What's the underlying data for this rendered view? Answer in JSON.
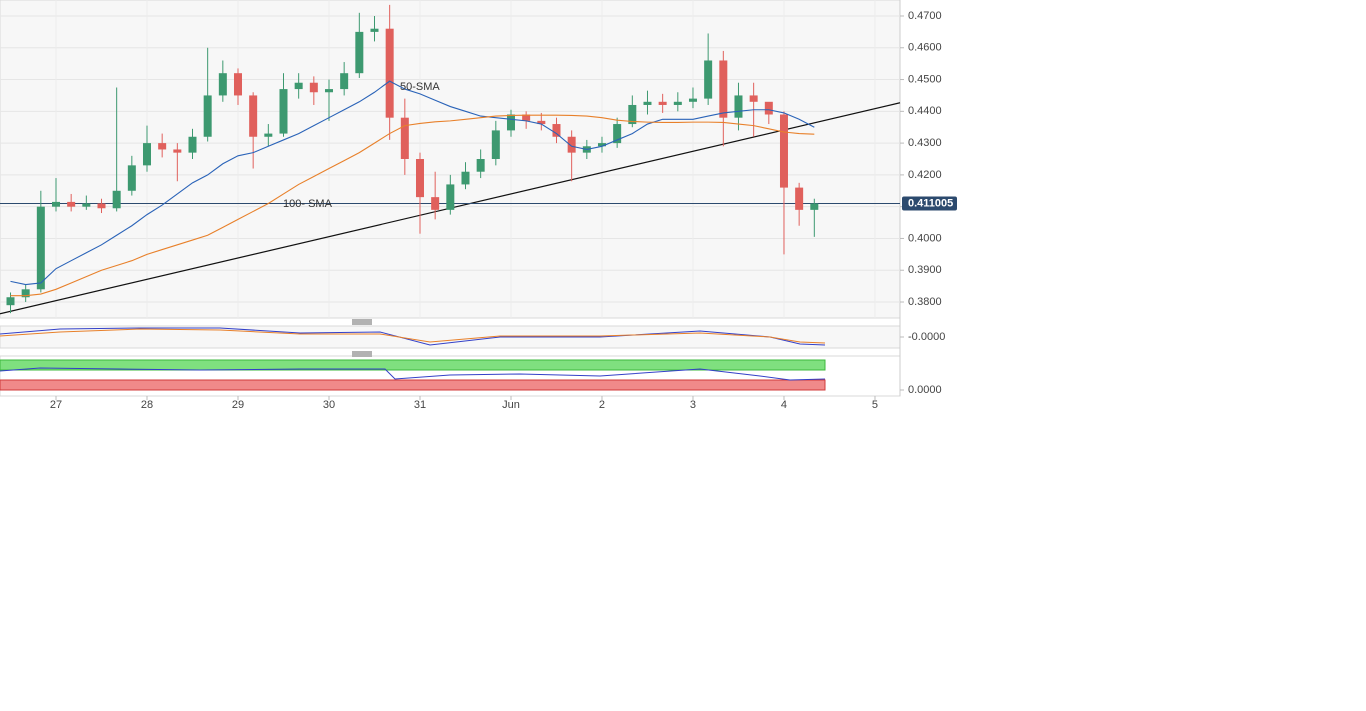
{
  "chart_data": {
    "type": "candlestick",
    "x": [
      12,
      16,
      20,
      24,
      28,
      32,
      36,
      40,
      44,
      48,
      52,
      56,
      60,
      64,
      68,
      72,
      76,
      80,
      84,
      88,
      92,
      96,
      100,
      104,
      108,
      112,
      116,
      120,
      124,
      128,
      132,
      136,
      140,
      144,
      148,
      152,
      156,
      160,
      164,
      168,
      172,
      176,
      180,
      184,
      188,
      192,
      196,
      200,
      204,
      208,
      212,
      216,
      220,
      224
    ],
    "open": [
      0.379,
      0.3815,
      0.384,
      0.41,
      0.4115,
      0.41,
      0.411,
      0.4095,
      0.415,
      0.423,
      0.43,
      0.428,
      0.427,
      0.432,
      0.445,
      0.452,
      0.445,
      0.432,
      0.433,
      0.447,
      0.449,
      0.446,
      0.447,
      0.452,
      0.465,
      0.466,
      0.438,
      0.425,
      0.413,
      0.409,
      0.417,
      0.421,
      0.425,
      0.434,
      0.439,
      0.437,
      0.436,
      0.432,
      0.427,
      0.429,
      0.43,
      0.436,
      0.442,
      0.443,
      0.442,
      0.443,
      0.444,
      0.456,
      0.438,
      0.445,
      0.443,
      0.439,
      0.416,
      0.409
    ],
    "high": [
      0.383,
      0.3855,
      0.415,
      0.419,
      0.414,
      0.4135,
      0.4125,
      0.4475,
      0.426,
      0.4355,
      0.433,
      0.43,
      0.4345,
      0.46,
      0.456,
      0.4535,
      0.446,
      0.436,
      0.452,
      0.452,
      0.451,
      0.45,
      0.4555,
      0.471,
      0.47,
      0.4735,
      0.444,
      0.427,
      0.421,
      0.42,
      0.424,
      0.428,
      0.437,
      0.4405,
      0.44,
      0.4395,
      0.438,
      0.434,
      0.431,
      0.432,
      0.438,
      0.445,
      0.4465,
      0.4455,
      0.446,
      0.4475,
      0.4645,
      0.459,
      0.449,
      0.449,
      0.442,
      0.44,
      0.4175,
      0.4125
    ],
    "low": [
      0.3765,
      0.38,
      0.383,
      0.4085,
      0.4085,
      0.409,
      0.408,
      0.4085,
      0.4135,
      0.421,
      0.4255,
      0.418,
      0.425,
      0.4305,
      0.443,
      0.442,
      0.422,
      0.429,
      0.432,
      0.444,
      0.442,
      0.437,
      0.445,
      0.4505,
      0.462,
      0.431,
      0.42,
      0.4015,
      0.406,
      0.4075,
      0.4155,
      0.419,
      0.423,
      0.432,
      0.4345,
      0.434,
      0.43,
      0.418,
      0.425,
      0.427,
      0.4285,
      0.435,
      0.439,
      0.4395,
      0.44,
      0.441,
      0.442,
      0.429,
      0.434,
      0.432,
      0.436,
      0.395,
      0.404,
      0.4005
    ],
    "close": [
      0.3815,
      0.384,
      0.41,
      0.4115,
      0.41,
      0.411,
      0.4095,
      0.415,
      0.423,
      0.43,
      0.428,
      0.427,
      0.432,
      0.445,
      0.452,
      0.445,
      0.432,
      0.433,
      0.447,
      0.449,
      0.446,
      0.447,
      0.452,
      0.465,
      0.466,
      0.438,
      0.425,
      0.413,
      0.409,
      0.417,
      0.421,
      0.425,
      0.434,
      0.439,
      0.437,
      0.436,
      0.432,
      0.427,
      0.429,
      0.43,
      0.436,
      0.442,
      0.443,
      0.442,
      0.443,
      0.444,
      0.456,
      0.438,
      0.445,
      0.443,
      0.439,
      0.416,
      0.409,
      0.411
    ],
    "up_color": "#3d9970",
    "down_color": "#e0605c",
    "series": [
      {
        "name": "50-SMA",
        "color": "#2a63b8",
        "values": [
          0.3865,
          0.3855,
          0.386,
          0.3905,
          0.393,
          0.3955,
          0.398,
          0.401,
          0.404,
          0.4075,
          0.4105,
          0.414,
          0.4175,
          0.42,
          0.4235,
          0.426,
          0.427,
          0.429,
          0.431,
          0.433,
          0.4355,
          0.438,
          0.4405,
          0.443,
          0.446,
          0.4495,
          0.447,
          0.4455,
          0.4435,
          0.4415,
          0.44,
          0.4385,
          0.438,
          0.4375,
          0.437,
          0.436,
          0.433,
          0.429,
          0.428,
          0.429,
          0.431,
          0.433,
          0.436,
          0.4375,
          0.4375,
          0.4375,
          0.4385,
          0.4395,
          0.44,
          0.4405,
          0.4405,
          0.4395,
          0.4375,
          0.435
        ]
      },
      {
        "name": "100- SMA",
        "color": "#e8802a",
        "values": [
          0.382,
          0.382,
          0.3825,
          0.384,
          0.386,
          0.388,
          0.39,
          0.3915,
          0.393,
          0.395,
          0.3965,
          0.398,
          0.3995,
          0.401,
          0.4035,
          0.406,
          0.4085,
          0.411,
          0.414,
          0.417,
          0.4195,
          0.422,
          0.4245,
          0.427,
          0.43,
          0.433,
          0.4355,
          0.4362,
          0.4367,
          0.437,
          0.4375,
          0.438,
          0.4385,
          0.4387,
          0.4388,
          0.4388,
          0.4388,
          0.4387,
          0.4385,
          0.438,
          0.4372,
          0.4368,
          0.4366,
          0.4365,
          0.4365,
          0.4366,
          0.4366,
          0.4365,
          0.436,
          0.4355,
          0.4345,
          0.4335,
          0.433,
          0.4328
        ]
      }
    ],
    "trendline": {
      "x": [
        9.23,
        246.6
      ],
      "values": [
        0.3763,
        0.4427
      ],
      "color": "#111111"
    },
    "current_price": 0.411005,
    "xlim": [
      9.23,
      246.6
    ],
    "xticks": [
      {
        "value": 24,
        "label": "27"
      },
      {
        "value": 48,
        "label": "28"
      },
      {
        "value": 72,
        "label": "29"
      },
      {
        "value": 96,
        "label": "30"
      },
      {
        "value": 120,
        "label": "31"
      },
      {
        "value": 144,
        "label": "Jun"
      },
      {
        "value": 168,
        "label": "2"
      },
      {
        "value": 192,
        "label": "3"
      },
      {
        "value": 216,
        "label": "4"
      },
      {
        "value": 240,
        "label": "5"
      }
    ],
    "ylim": [
      0.37497,
      0.47503
    ],
    "yticks": [
      {
        "value": 0.38,
        "label": "0.3800"
      },
      {
        "value": 0.39,
        "label": "0.3900"
      },
      {
        "value": 0.4,
        "label": "0.4000"
      },
      {
        "value": 0.41,
        "label": "0.4100"
      },
      {
        "value": 0.42,
        "label": "0.4200"
      },
      {
        "value": 0.43,
        "label": "0.4300"
      },
      {
        "value": 0.44,
        "label": "0.4400"
      },
      {
        "value": 0.45,
        "label": "0.4500"
      },
      {
        "value": 0.46,
        "label": "0.4600"
      },
      {
        "value": 0.47,
        "label": "0.4700"
      }
    ],
    "grid": true,
    "indicator_panels": [
      {
        "yticks": [
          {
            "value": 0,
            "label": "-0.0000"
          }
        ]
      },
      {
        "yticks": [
          {
            "value": 0,
            "label": "0.0000"
          }
        ]
      }
    ]
  }
}
